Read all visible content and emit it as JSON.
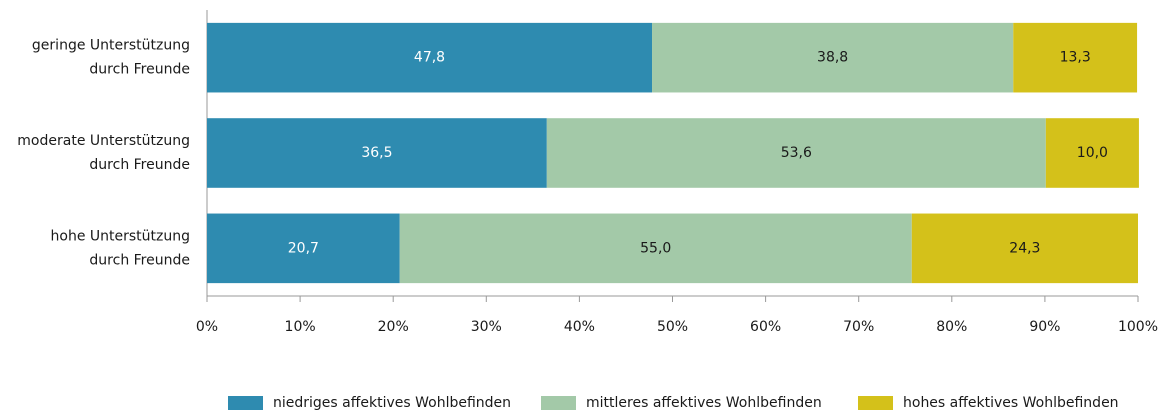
{
  "chart_data": {
    "type": "stacked_barh",
    "categories": [
      [
        "geringe Unterstützung",
        "durch Freunde"
      ],
      [
        "moderate Unterstützung",
        "durch Freunde"
      ],
      [
        "hohe Unterstützung",
        "durch Freunde"
      ]
    ],
    "series": [
      {
        "name": "niedriges affektives Wohlbefinden",
        "color": "#2e8bb0",
        "values": [
          47.8,
          36.5,
          20.7
        ],
        "value_labels": [
          "47,8",
          "36,5",
          "20,7"
        ]
      },
      {
        "name": "mittleres affektives Wohlbefinden",
        "color": "#a3c9a8",
        "values": [
          38.8,
          53.6,
          55.0
        ],
        "value_labels": [
          "38,8",
          "53,6",
          "55,0"
        ]
      },
      {
        "name": "hohes affektives Wohlbefinden",
        "color": "#d4c11a",
        "values": [
          13.3,
          10.0,
          24.3
        ],
        "value_labels": [
          "13,3",
          "10,0",
          "24,3"
        ]
      }
    ],
    "xlim": [
      0,
      100
    ],
    "xticks": [
      {
        "value": 0,
        "label": "0%"
      },
      {
        "value": 10,
        "label": "10%"
      },
      {
        "value": 20,
        "label": "20%"
      },
      {
        "value": 30,
        "label": "30%"
      },
      {
        "value": 40,
        "label": "40%"
      },
      {
        "value": 50,
        "label": "50%"
      },
      {
        "value": 60,
        "label": "60%"
      },
      {
        "value": 70,
        "label": "70%"
      },
      {
        "value": 80,
        "label": "80%"
      },
      {
        "value": 90,
        "label": "90%"
      },
      {
        "value": 100,
        "label": "100%"
      }
    ],
    "legend": "bottom"
  }
}
